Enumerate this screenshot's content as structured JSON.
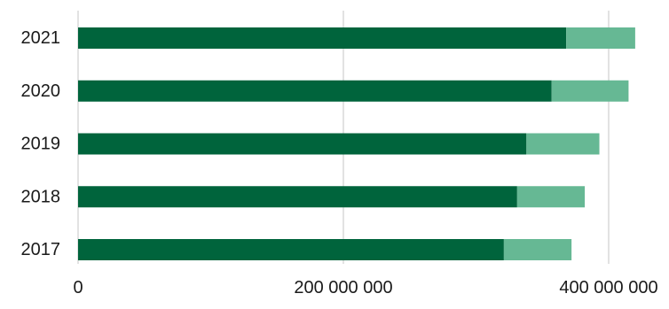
{
  "chart_data": {
    "type": "bar",
    "orientation": "horizontal",
    "stacked": true,
    "categories": [
      "2021",
      "2020",
      "2019",
      "2018",
      "2017"
    ],
    "series": [
      {
        "values": [
          368000000,
          357000000,
          338000000,
          331000000,
          321000000
        ],
        "color": "#00643c"
      },
      {
        "values": [
          52000000,
          58000000,
          55000000,
          51000000,
          51000000
        ],
        "color": "#66b894"
      }
    ],
    "xlim": [
      0,
      400000000
    ],
    "xticks": [
      0,
      200000000,
      400000000
    ],
    "xtick_labels": [
      "0",
      "200 000 000",
      "400 000 000"
    ],
    "grid": true,
    "legend": "none",
    "title": "",
    "xlabel": "",
    "ylabel": ""
  }
}
